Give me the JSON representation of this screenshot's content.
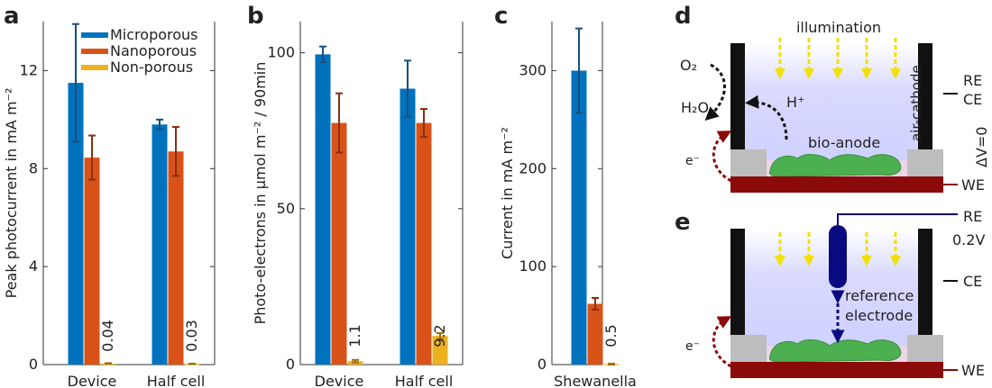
{
  "colors": {
    "microporous": "#0072BD",
    "nanoporous": "#D95319",
    "nonporous": "#EDB120",
    "errorbar_micro": "#1a4f7a",
    "errorbar_nano": "#8b2e10",
    "errorbar_non": "#a0700a",
    "chamber": "#cfd0ff",
    "wall": "#111111",
    "electrode": "#8b0a0a",
    "biofilm": "#4caf50",
    "spacer": "#bdbdbd",
    "arrow_light": "#f2e000",
    "ref_electrode": "#0a0a80"
  },
  "chart_data": [
    {
      "type": "bar",
      "panel_label": "a",
      "ylabel": "Peak photocurrent in mA m⁻²",
      "ylim": [
        0,
        14
      ],
      "yticks": [
        "0",
        "4",
        "8",
        "12"
      ],
      "categories": [
        "Device",
        "Half cell"
      ],
      "series": [
        {
          "name": "Microporous",
          "values": [
            11.5,
            9.8
          ],
          "errors": [
            2.4,
            0.2
          ]
        },
        {
          "name": "Nanoporous",
          "values": [
            8.45,
            8.7
          ],
          "errors": [
            0.9,
            1.0
          ]
        },
        {
          "name": "Non-porous",
          "values": [
            0.04,
            0.03
          ],
          "errors": [
            0.02,
            0.01
          ]
        }
      ],
      "value_labels": [
        "0.04",
        "0.03"
      ],
      "legend": [
        "Microporous",
        "Nanoporous",
        "Non-porous"
      ],
      "legend_position": "top-right"
    },
    {
      "type": "bar",
      "panel_label": "b",
      "ylabel": "Photo-electrons in µmol m⁻² / 90min",
      "ylim": [
        0,
        110
      ],
      "yticks": [
        "0",
        "50",
        "100"
      ],
      "categories": [
        "Device",
        "Half cell"
      ],
      "series": [
        {
          "name": "Microporous",
          "values": [
            99.5,
            88.5
          ],
          "errors": [
            2.5,
            9.0
          ]
        },
        {
          "name": "Nanoporous",
          "values": [
            77.5,
            77.5
          ],
          "errors": [
            9.5,
            4.5
          ]
        },
        {
          "name": "Non-porous",
          "values": [
            1.1,
            9.2
          ],
          "errors": [
            0.4,
            0.9
          ]
        }
      ],
      "value_labels": [
        "1.1",
        "9.2"
      ]
    },
    {
      "type": "bar",
      "panel_label": "c",
      "ylabel": "Current in mA m⁻²",
      "ylim": [
        0,
        350
      ],
      "yticks": [
        "0",
        "100",
        "200",
        "300"
      ],
      "categories": [
        "Shewanella"
      ],
      "series": [
        {
          "name": "Microporous",
          "values": [
            300
          ],
          "errors": [
            43
          ]
        },
        {
          "name": "Nanoporous",
          "values": [
            62
          ],
          "errors": [
            6
          ]
        },
        {
          "name": "Non-porous",
          "values": [
            0.5
          ],
          "errors": [
            0.5
          ]
        }
      ],
      "value_labels": [
        "0.5"
      ]
    }
  ],
  "diagram_d": {
    "panel_label": "d",
    "illumination": "illumination",
    "o2": "O₂",
    "h2o": "H₂O",
    "hplus": "H⁺",
    "air_cathode": "air-cathode",
    "bio_anode": "bio-anode",
    "electron": "e⁻",
    "re": "RE",
    "ce": "CE",
    "dv": "ΔV=0",
    "we": "WE"
  },
  "diagram_e": {
    "panel_label": "e",
    "re": "RE",
    "voltage": "0.2V",
    "ce": "CE",
    "reference": "reference",
    "electrode": "electrode",
    "electron": "e⁻",
    "we": "WE"
  }
}
